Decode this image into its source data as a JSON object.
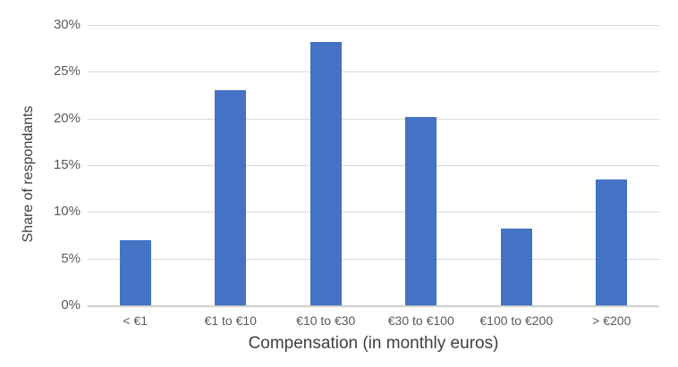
{
  "chart_data": {
    "type": "bar",
    "title": "",
    "xlabel": "Compensation (in monthly euros)",
    "ylabel": "Share of respondants",
    "categories": [
      "< €1",
      "€1 to €10",
      "€10 to €30",
      "€30 to €100",
      "€100 to €200",
      "> €200"
    ],
    "values": [
      7,
      23,
      28.2,
      20.2,
      8.2,
      13.5
    ],
    "ylim": [
      0,
      30
    ],
    "ytick_step": 5,
    "ytick_labels": [
      "0%",
      "5%",
      "10%",
      "15%",
      "20%",
      "25%",
      "30%"
    ],
    "grid": true,
    "legend_position": "none"
  },
  "colors": {
    "bar": "#4472C4",
    "gridline": "#D9D9D9",
    "axis_line": "#CFCFCF",
    "tick_label": "#595959",
    "axis_title": "#404040",
    "background": "#FFFFFF"
  }
}
